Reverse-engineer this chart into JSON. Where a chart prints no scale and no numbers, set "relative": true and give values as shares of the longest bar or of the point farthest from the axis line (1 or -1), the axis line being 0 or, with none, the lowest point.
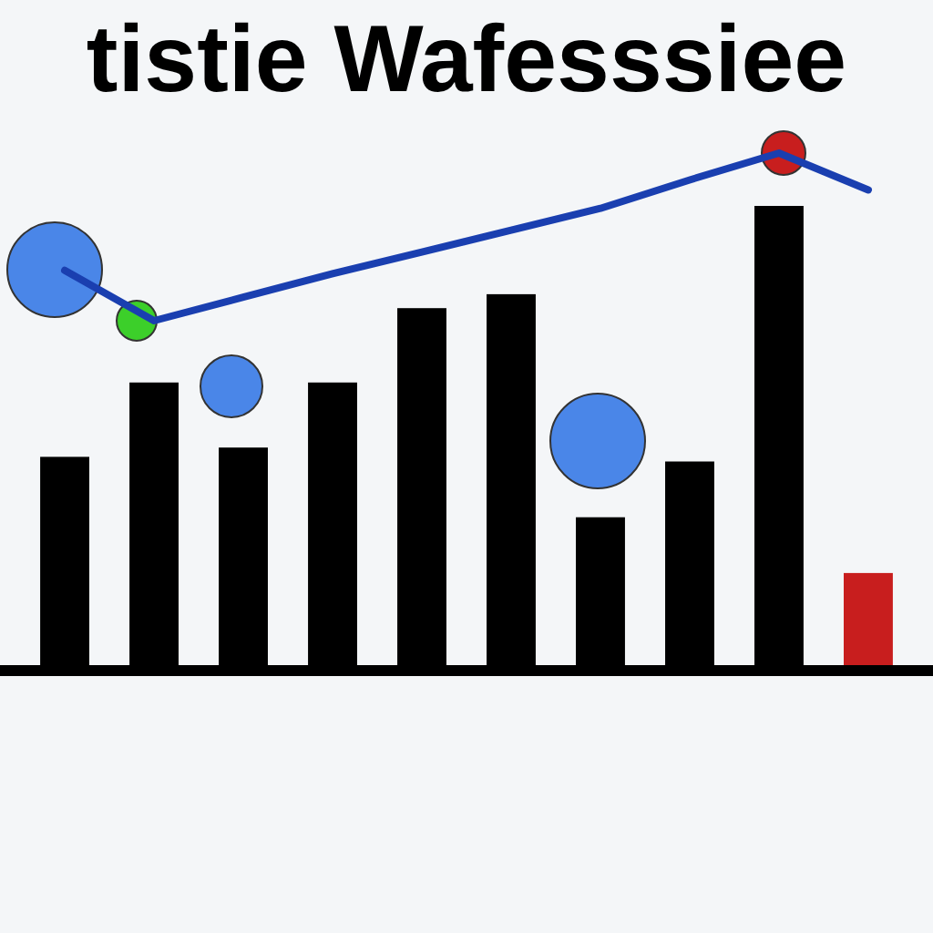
{
  "chart_data": [
    {
      "type": "bar",
      "title": "tistie Wafesssiee",
      "relative": true,
      "categories": [
        null,
        null,
        null,
        null,
        null,
        null,
        null,
        null,
        null,
        null
      ],
      "values": [
        0.46,
        0.62,
        0.48,
        0.62,
        0.78,
        0.81,
        0.33,
        0.45,
        1,
        0.21
      ],
      "colors": [
        "#000000",
        "#000000",
        "#000000",
        "#000000",
        "#000000",
        "#000000",
        "#000000",
        "#000000",
        "#000000",
        "#c81e1e"
      ]
    },
    {
      "type": "line",
      "relative": true,
      "categories": [
        null,
        null,
        null,
        null,
        null,
        null,
        null,
        null,
        null,
        null
      ],
      "values": [
        0.3,
        0,
        0.14,
        0.28,
        0.41,
        0.54,
        0.67,
        0.84,
        1,
        0.78
      ],
      "color": "#1a3fb0"
    }
  ]
}
